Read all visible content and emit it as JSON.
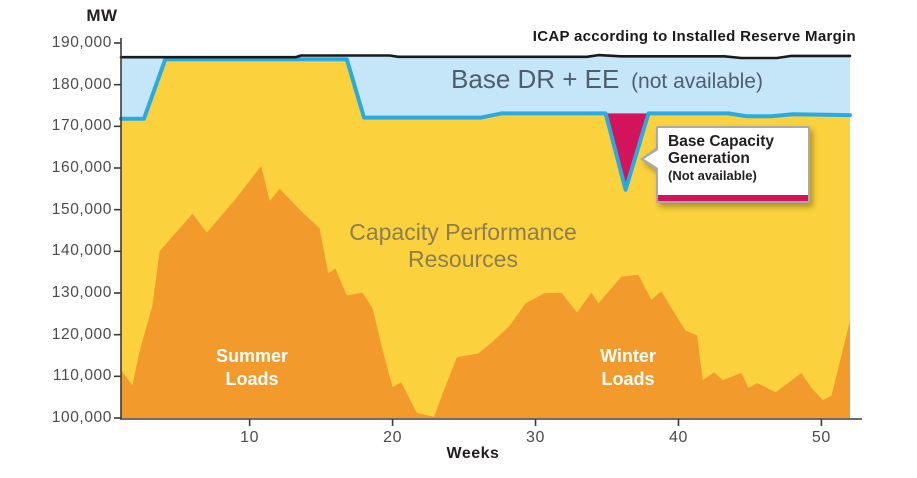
{
  "labels": {
    "y_axis_unit": "MW",
    "x_axis_title": "Weeks",
    "icap": "ICAP according to Installed Reserve Margin",
    "band_main": "Base DR + EE",
    "band_paren": "(not available)",
    "capacity_line1": "Capacity Performance",
    "capacity_line2": "Resources",
    "summer_line1": "Summer",
    "summer_line2": "Loads",
    "winter_line1": "Winter",
    "winter_line2": "Loads",
    "callout_line1": "Base Capacity",
    "callout_line2": "Generation",
    "callout_line3": "(Not available)"
  },
  "chart_data": {
    "type": "area",
    "title": "",
    "xlabel": "Weeks",
    "ylabel": "MW",
    "xlim": [
      1,
      52
    ],
    "ylim": [
      100000,
      190000
    ],
    "x_ticks": [
      10,
      20,
      30,
      40,
      50
    ],
    "y_tick_min": 100000,
    "y_tick_max": 190000,
    "y_tick_step": 10000,
    "grid": false,
    "colors": {
      "capacity_area": "#fbd13d",
      "load_area": "#f39a2d",
      "band": "#c5e6f8",
      "capacity_line": "#29abe2",
      "icap_line": "#1a1a1a",
      "notch": "#d4145a",
      "axis": "#3b3b3b"
    },
    "series": {
      "icap_line": {
        "name": "ICAP according to Installed Reserve Margin",
        "points": [
          [
            1,
            186600
          ],
          [
            13.2,
            186600
          ],
          [
            13.6,
            187000
          ],
          [
            19.8,
            187000
          ],
          [
            20.4,
            186700
          ],
          [
            33.6,
            186700
          ],
          [
            34.4,
            187100
          ],
          [
            36,
            186800
          ],
          [
            43.2,
            186800
          ],
          [
            44.4,
            186400
          ],
          [
            46.9,
            186400
          ],
          [
            47.9,
            186900
          ],
          [
            52,
            186900
          ]
        ]
      },
      "capacity_top": {
        "name": "Capacity Performance Resources (top of available capacity)",
        "points": [
          [
            1,
            171800
          ],
          [
            2.6,
            171800
          ],
          [
            4.1,
            186100
          ],
          [
            16.8,
            186100
          ],
          [
            18,
            172100
          ],
          [
            26.2,
            172100
          ],
          [
            27.6,
            173100
          ],
          [
            43.5,
            173100
          ],
          [
            44.8,
            172400
          ],
          [
            46.5,
            172400
          ],
          [
            48,
            172900
          ],
          [
            52,
            172700
          ]
        ]
      },
      "notch": {
        "name": "Base Capacity Generation (Not available)",
        "points": [
          [
            34.9,
            173100
          ],
          [
            36.3,
            154800
          ],
          [
            37.9,
            173100
          ]
        ]
      },
      "band": {
        "name": "Base DR + EE (not available)",
        "between": [
          "icap_line",
          "capacity_top"
        ]
      },
      "load": {
        "name": "Summer / Winter Loads",
        "points": [
          [
            1,
            111500
          ],
          [
            1.8,
            107900
          ],
          [
            2.3,
            116000
          ],
          [
            3.2,
            127000
          ],
          [
            3.7,
            140000
          ],
          [
            6,
            149000
          ],
          [
            7,
            144500
          ],
          [
            9,
            152500
          ],
          [
            10.8,
            160500
          ],
          [
            11.4,
            152100
          ],
          [
            12.1,
            155000
          ],
          [
            13.5,
            150000
          ],
          [
            14.9,
            145500
          ],
          [
            15.5,
            134700
          ],
          [
            16,
            135900
          ],
          [
            16.8,
            129400
          ],
          [
            17.9,
            130100
          ],
          [
            18.6,
            126300
          ],
          [
            19.3,
            116300
          ],
          [
            20,
            107400
          ],
          [
            20.6,
            108600
          ],
          [
            21.7,
            101200
          ],
          [
            22.9,
            100300
          ],
          [
            23.6,
            106700
          ],
          [
            24.5,
            114600
          ],
          [
            26,
            115500
          ],
          [
            27.1,
            118600
          ],
          [
            28.2,
            122200
          ],
          [
            29.3,
            127500
          ],
          [
            30.6,
            129900
          ],
          [
            31.8,
            130100
          ],
          [
            32.9,
            125300
          ],
          [
            33.9,
            130100
          ],
          [
            34.4,
            127500
          ],
          [
            36,
            133900
          ],
          [
            37.2,
            134400
          ],
          [
            38.1,
            128400
          ],
          [
            38.8,
            130400
          ],
          [
            39.7,
            125300
          ],
          [
            40.5,
            121000
          ],
          [
            41.3,
            119800
          ],
          [
            41.7,
            109100
          ],
          [
            42.5,
            111000
          ],
          [
            43.1,
            109100
          ],
          [
            44.4,
            110800
          ],
          [
            44.9,
            107200
          ],
          [
            45.5,
            108400
          ],
          [
            46.8,
            106200
          ],
          [
            48.6,
            110800
          ],
          [
            49.3,
            107200
          ],
          [
            50.1,
            104300
          ],
          [
            50.7,
            105300
          ],
          [
            52,
            123400
          ]
        ]
      }
    }
  }
}
